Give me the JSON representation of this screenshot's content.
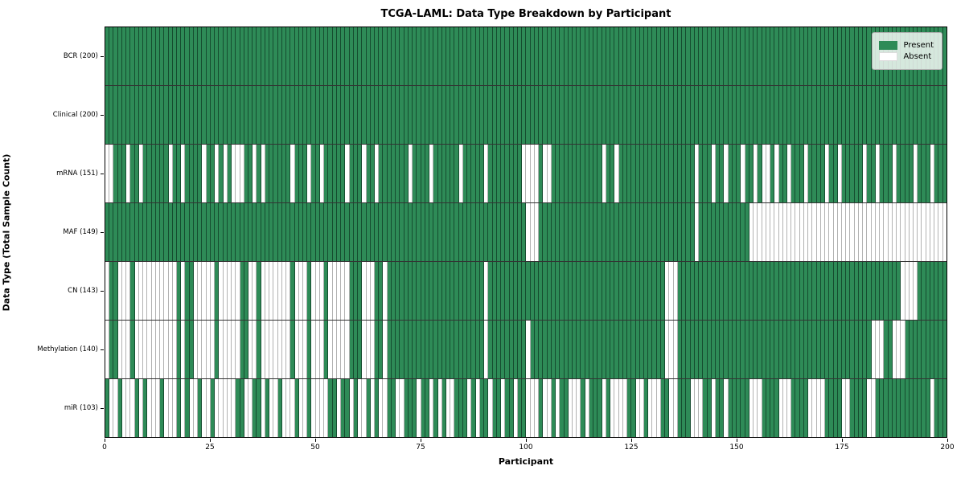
{
  "title": "TCGA-LAML: Data Type Breakdown by Participant",
  "chart_data": {
    "type": "heatmap",
    "title": "TCGA-LAML: Data Type Breakdown by Participant",
    "xlabel": "Participant",
    "ylabel": "Data Type (Total Sample Count)",
    "x_range": [
      0,
      200
    ],
    "x_ticks": [
      0,
      25,
      50,
      75,
      100,
      125,
      150,
      175,
      200
    ],
    "n_participants": 200,
    "grid": false,
    "legend_position": "upper right",
    "legend": [
      {
        "label": "Present",
        "value": "present",
        "color": "#2e8b57"
      },
      {
        "label": "Absent",
        "value": "absent",
        "color": "#ffffff"
      }
    ],
    "colors": {
      "present": "#2e8b57",
      "absent": "#ffffff"
    },
    "rows": [
      {
        "label": "BCR (200)",
        "data_type": "BCR",
        "present_count": 200,
        "absent": []
      },
      {
        "label": "Clinical (200)",
        "data_type": "Clinical",
        "present_count": 200,
        "absent": []
      },
      {
        "label": "mRNA (151)",
        "data_type": "mRNA",
        "present_count": 151,
        "absent": [
          0,
          1,
          5,
          8,
          15,
          18,
          23,
          26,
          28,
          30,
          31,
          32,
          35,
          37,
          44,
          48,
          51,
          57,
          61,
          64,
          72,
          77,
          84,
          90,
          99,
          100,
          101,
          102,
          104,
          105,
          118,
          121,
          140,
          144,
          147,
          151,
          154,
          156,
          157,
          159,
          162,
          166,
          171,
          174,
          180,
          183,
          187,
          192,
          196
        ]
      },
      {
        "label": "MAF (149)",
        "data_type": "MAF",
        "present_count": 149,
        "absent": [
          100,
          101,
          102,
          140,
          153,
          154,
          155,
          156,
          157,
          158,
          159,
          160,
          161,
          162,
          163,
          164,
          165,
          166,
          167,
          168,
          169,
          170,
          171,
          172,
          173,
          174,
          175,
          176,
          177,
          178,
          179,
          180,
          181,
          182,
          183,
          184,
          185,
          186,
          187,
          188,
          189,
          190,
          191,
          192,
          193,
          194,
          195,
          196,
          197,
          198,
          199
        ]
      },
      {
        "label": "CN (143)",
        "data_type": "CN",
        "present_count": 143,
        "absent": [
          0,
          3,
          4,
          5,
          7,
          8,
          9,
          10,
          11,
          12,
          13,
          14,
          15,
          16,
          18,
          21,
          22,
          23,
          24,
          25,
          27,
          28,
          29,
          30,
          31,
          34,
          35,
          37,
          38,
          39,
          40,
          41,
          42,
          43,
          45,
          46,
          47,
          49,
          50,
          51,
          53,
          54,
          55,
          56,
          57,
          61,
          62,
          63,
          66,
          90,
          133,
          134,
          135,
          189,
          190,
          191,
          192
        ]
      },
      {
        "label": "Methylation (140)",
        "data_type": "Methylation",
        "present_count": 140,
        "absent": [
          0,
          3,
          4,
          5,
          7,
          8,
          9,
          10,
          11,
          12,
          13,
          14,
          15,
          16,
          18,
          21,
          22,
          23,
          24,
          25,
          27,
          28,
          29,
          30,
          31,
          34,
          35,
          37,
          38,
          39,
          40,
          41,
          42,
          43,
          45,
          46,
          47,
          49,
          50,
          51,
          53,
          54,
          55,
          56,
          57,
          61,
          62,
          63,
          66,
          90,
          100,
          133,
          134,
          135,
          182,
          183,
          184,
          187,
          188,
          189
        ]
      },
      {
        "label": "miR (103)",
        "data_type": "miR",
        "present_count": 103,
        "absent": [
          1,
          2,
          4,
          5,
          6,
          8,
          10,
          11,
          12,
          14,
          15,
          16,
          18,
          20,
          21,
          23,
          24,
          26,
          27,
          28,
          29,
          30,
          33,
          34,
          37,
          39,
          40,
          42,
          43,
          44,
          46,
          47,
          49,
          50,
          51,
          52,
          55,
          58,
          60,
          61,
          63,
          65,
          66,
          69,
          70,
          74,
          77,
          79,
          81,
          82,
          86,
          88,
          91,
          94,
          97,
          100,
          101,
          102,
          104,
          105,
          107,
          110,
          111,
          112,
          114,
          118,
          120,
          121,
          122,
          123,
          126,
          127,
          129,
          130,
          131,
          134,
          135,
          139,
          140,
          141,
          144,
          147,
          153,
          154,
          155,
          160,
          161,
          162,
          167,
          168,
          169,
          170,
          175,
          176,
          181,
          182,
          196
        ]
      }
    ]
  }
}
